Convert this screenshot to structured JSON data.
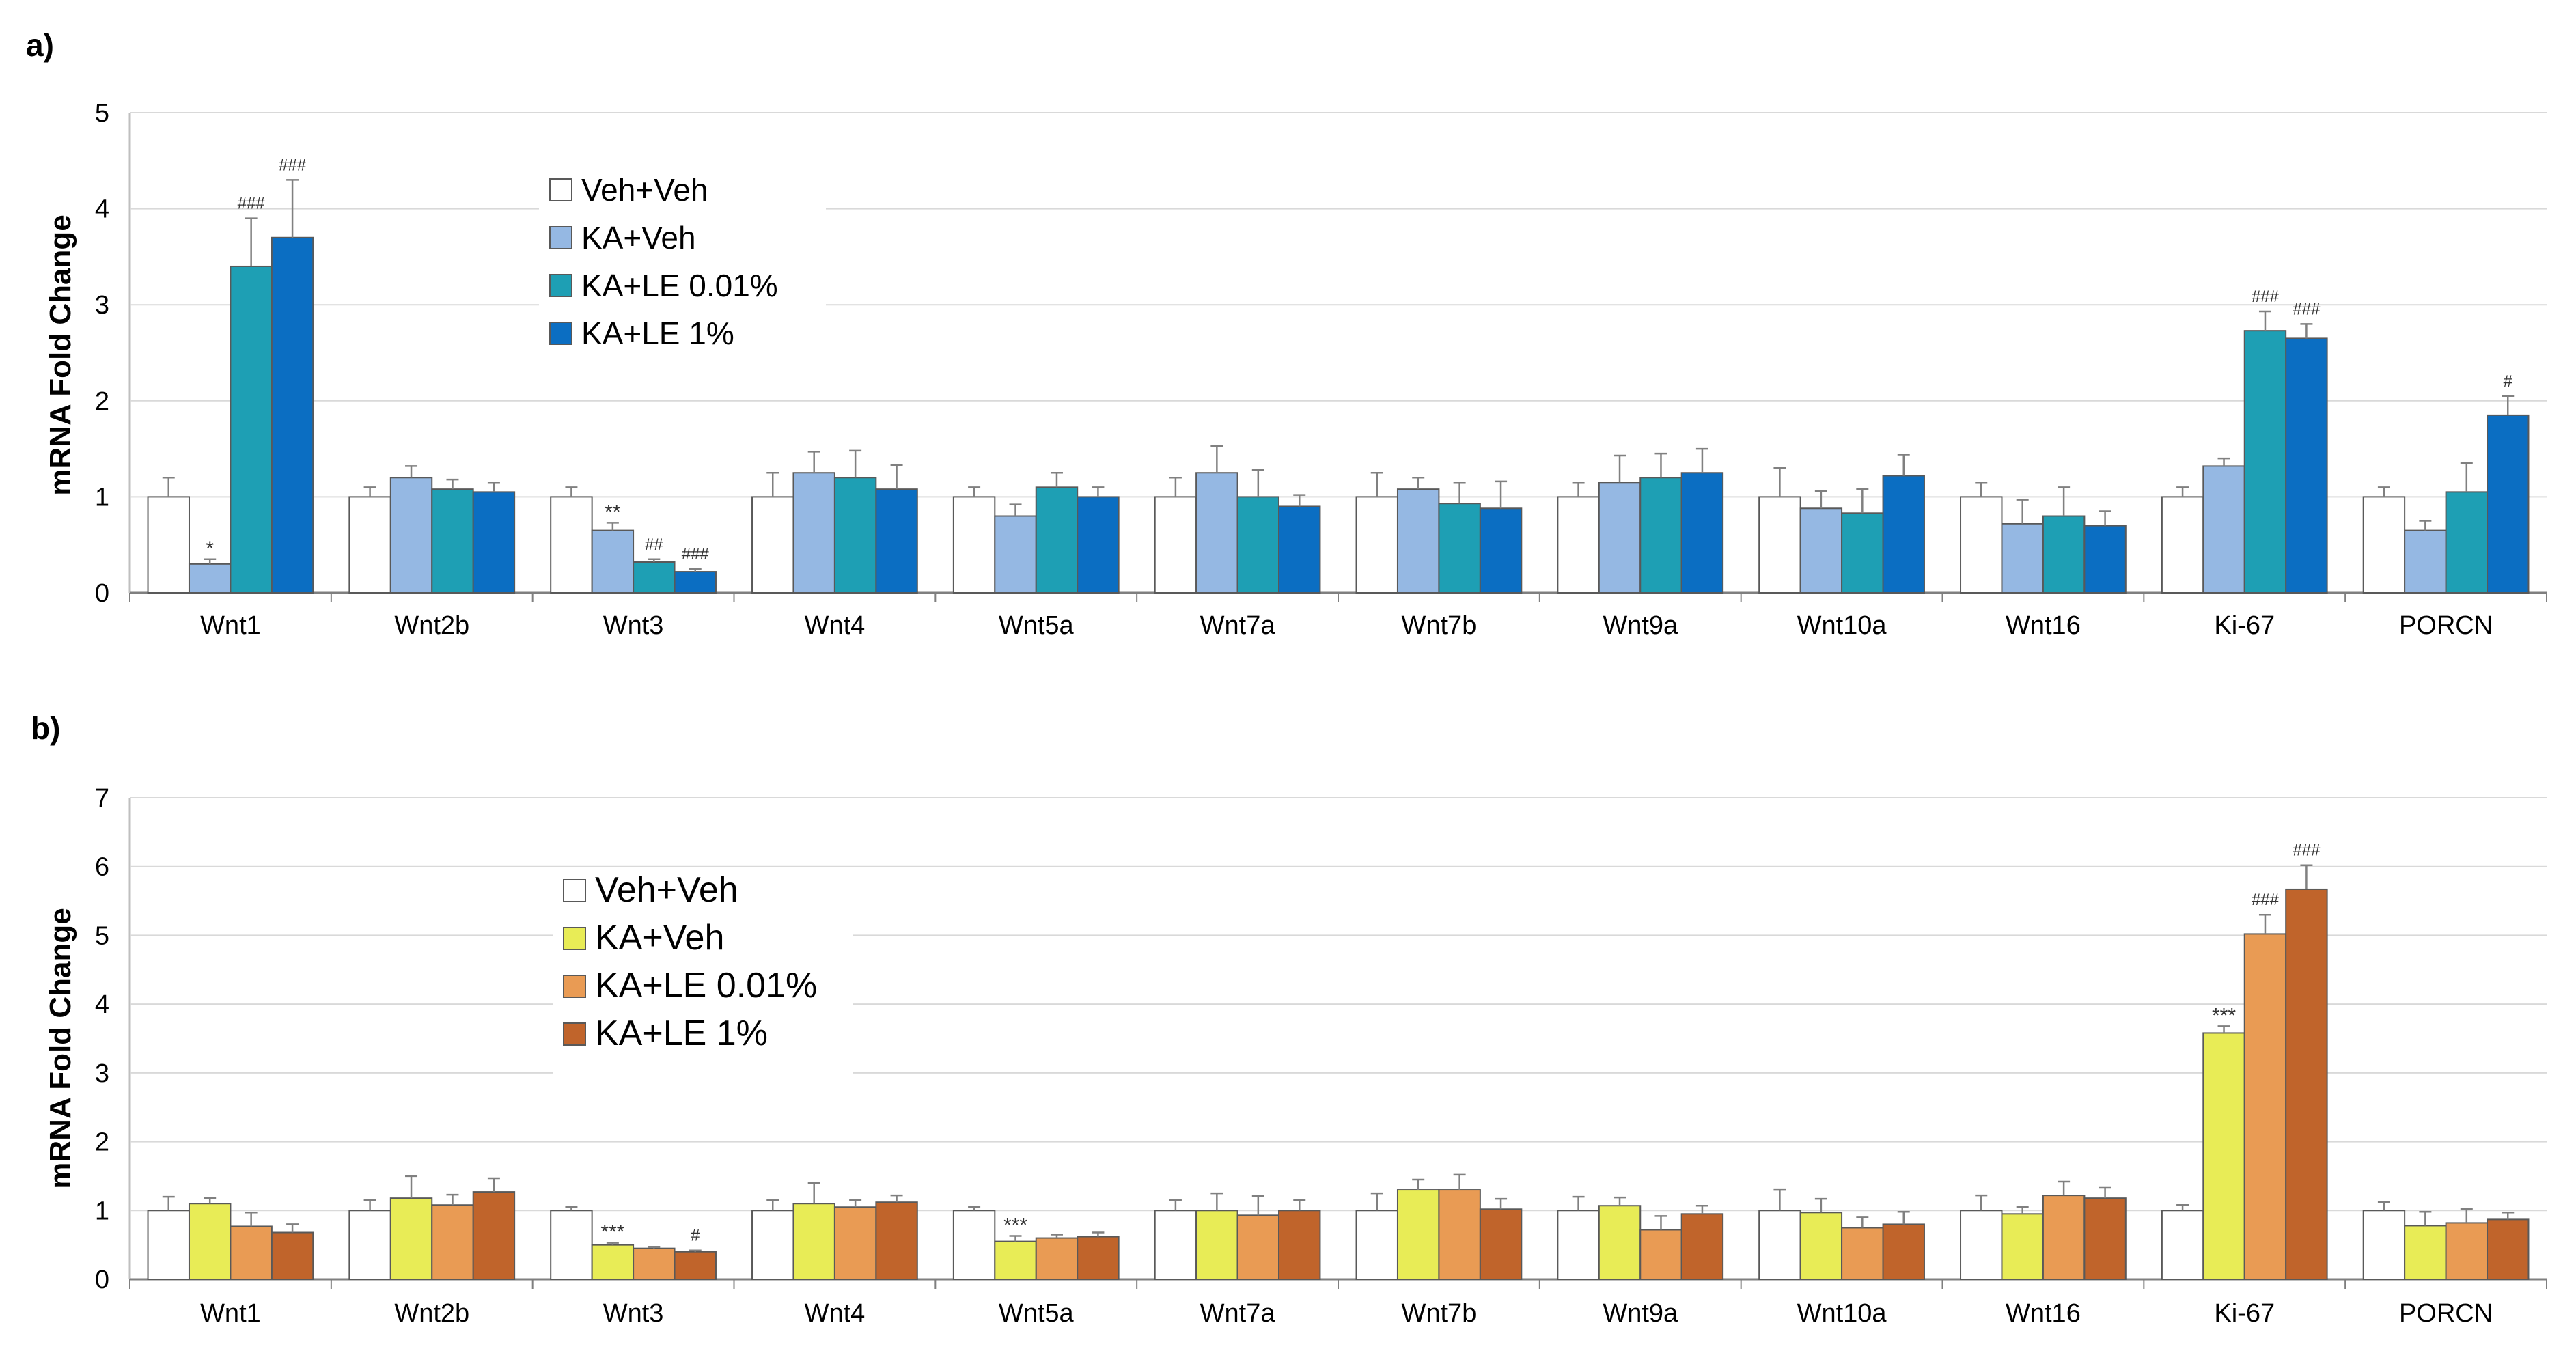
{
  "chart_data": [
    {
      "type": "bar",
      "panel_label": "a)",
      "ylabel": "mRNA Fold Change",
      "ylim": [
        0,
        5
      ],
      "yticks": [
        "0",
        "1",
        "2",
        "3",
        "4",
        "5"
      ],
      "grid": true,
      "legend_position": "top-center",
      "categories": [
        "Wnt1",
        "Wnt2b",
        "Wnt3",
        "Wnt4",
        "Wnt5a",
        "Wnt7a",
        "Wnt7b",
        "Wnt9a",
        "Wnt10a",
        "Wnt16",
        "Ki-67",
        "PORCN"
      ],
      "series": [
        {
          "name": "Veh+Veh",
          "color": "#ffffff",
          "values": [
            1.0,
            1.0,
            1.0,
            1.0,
            1.0,
            1.0,
            1.0,
            1.0,
            1.0,
            1.0,
            1.0,
            1.0
          ],
          "errors": [
            0.2,
            0.1,
            0.1,
            0.25,
            0.1,
            0.2,
            0.25,
            0.15,
            0.3,
            0.15,
            0.1,
            0.1
          ],
          "annotations": [
            "",
            "",
            "",
            "",
            "",
            "",
            "",
            "",
            "",
            "",
            "",
            ""
          ]
        },
        {
          "name": "KA+Veh",
          "color": "#95b8e3",
          "values": [
            0.3,
            1.2,
            0.65,
            1.25,
            0.8,
            1.25,
            1.08,
            1.15,
            0.88,
            0.72,
            1.32,
            0.65
          ],
          "errors": [
            0.05,
            0.12,
            0.08,
            0.22,
            0.12,
            0.28,
            0.12,
            0.28,
            0.18,
            0.25,
            0.08,
            0.1
          ],
          "annotations": [
            "*",
            "",
            "**",
            "",
            "",
            "",
            "",
            "",
            "",
            "",
            "",
            ""
          ]
        },
        {
          "name": "KA+LE 0.01%",
          "color": "#1e9fb4",
          "values": [
            3.4,
            1.08,
            0.32,
            1.2,
            1.1,
            1.0,
            0.93,
            1.2,
            0.83,
            0.8,
            2.73,
            1.05
          ],
          "errors": [
            0.5,
            0.1,
            0.03,
            0.28,
            0.15,
            0.28,
            0.22,
            0.25,
            0.25,
            0.3,
            0.2,
            0.3
          ],
          "annotations": [
            "###",
            "",
            "##",
            "",
            "",
            "",
            "",
            "",
            "",
            "",
            "###",
            ""
          ]
        },
        {
          "name": "KA+LE 1%",
          "color": "#0b6ec2",
          "values": [
            3.7,
            1.05,
            0.22,
            1.08,
            1.0,
            0.9,
            0.88,
            1.25,
            1.22,
            0.7,
            2.65,
            1.85
          ],
          "errors": [
            0.6,
            0.1,
            0.03,
            0.25,
            0.1,
            0.12,
            0.28,
            0.25,
            0.22,
            0.15,
            0.15,
            0.2
          ],
          "annotations": [
            "###",
            "",
            "###",
            "",
            "",
            "",
            "",
            "",
            "",
            "",
            "###",
            "#"
          ]
        }
      ]
    },
    {
      "type": "bar",
      "panel_label": "b)",
      "ylabel": "mRNA Fold Change",
      "ylim": [
        0,
        7
      ],
      "yticks": [
        "0",
        "1",
        "2",
        "3",
        "4",
        "5",
        "6",
        "7"
      ],
      "grid": true,
      "legend_position": "top-left",
      "categories": [
        "Wnt1",
        "Wnt2b",
        "Wnt3",
        "Wnt4",
        "Wnt5a",
        "Wnt7a",
        "Wnt7b",
        "Wnt9a",
        "Wnt10a",
        "Wnt16",
        "Ki-67",
        "PORCN"
      ],
      "series": [
        {
          "name": "Veh+Veh",
          "color": "#ffffff",
          "values": [
            1.0,
            1.0,
            1.0,
            1.0,
            1.0,
            1.0,
            1.0,
            1.0,
            1.0,
            1.0,
            1.0,
            1.0
          ],
          "errors": [
            0.2,
            0.15,
            0.05,
            0.15,
            0.05,
            0.15,
            0.25,
            0.2,
            0.3,
            0.22,
            0.08,
            0.12
          ],
          "annotations": [
            "",
            "",
            "",
            "",
            "",
            "",
            "",
            "",
            "",
            "",
            "",
            ""
          ]
        },
        {
          "name": "KA+Veh",
          "color": "#e8ec56",
          "values": [
            1.1,
            1.18,
            0.5,
            1.1,
            0.55,
            1.0,
            1.3,
            1.07,
            0.97,
            0.95,
            3.58,
            0.78
          ],
          "errors": [
            0.08,
            0.32,
            0.03,
            0.3,
            0.08,
            0.25,
            0.15,
            0.12,
            0.2,
            0.1,
            0.1,
            0.2
          ],
          "annotations": [
            "",
            "",
            "***",
            "",
            "***",
            "",
            "",
            "",
            "",
            "",
            "***",
            ""
          ]
        },
        {
          "name": "KA+LE 0.01%",
          "color": "#e99b54",
          "values": [
            0.77,
            1.08,
            0.45,
            1.05,
            0.6,
            0.93,
            1.3,
            0.72,
            0.75,
            1.22,
            5.02,
            0.82
          ],
          "errors": [
            0.2,
            0.15,
            0.02,
            0.1,
            0.05,
            0.28,
            0.22,
            0.2,
            0.15,
            0.2,
            0.28,
            0.2
          ],
          "annotations": [
            "",
            "",
            "",
            "",
            "",
            "",
            "",
            "",
            "",
            "",
            "###",
            ""
          ]
        },
        {
          "name": "KA+LE 1%",
          "color": "#c0642b",
          "values": [
            0.68,
            1.27,
            0.4,
            1.12,
            0.62,
            1.0,
            1.02,
            0.95,
            0.8,
            1.18,
            5.67,
            0.87
          ],
          "errors": [
            0.12,
            0.2,
            0.02,
            0.1,
            0.06,
            0.15,
            0.15,
            0.12,
            0.18,
            0.15,
            0.35,
            0.1
          ],
          "annotations": [
            "",
            "",
            "#",
            "",
            "",
            "",
            "",
            "",
            "",
            "",
            "###",
            ""
          ]
        }
      ]
    }
  ]
}
